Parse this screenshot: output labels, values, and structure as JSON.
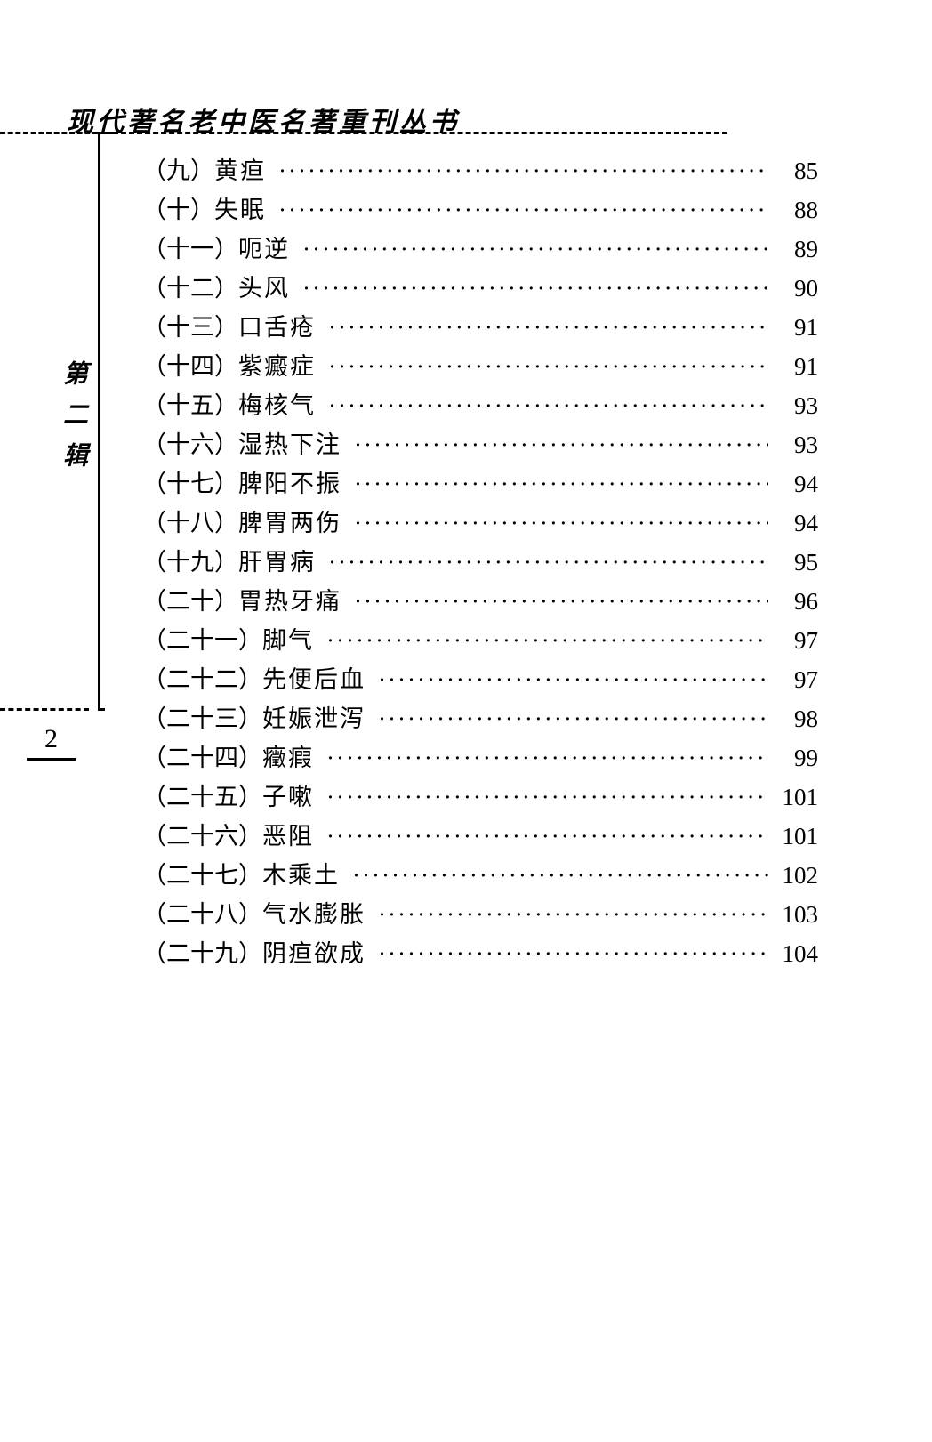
{
  "series_title": "现代著名老中医名著重刊丛书",
  "sidebar_label": "第二辑",
  "page_number": "2",
  "toc_entries": [
    {
      "index": "（九）",
      "title": "黄疸",
      "page": "85"
    },
    {
      "index": "（十）",
      "title": "失眠",
      "page": "88"
    },
    {
      "index": "（十一）",
      "title": "呃逆",
      "page": "89"
    },
    {
      "index": "（十二）",
      "title": "头风",
      "page": "90"
    },
    {
      "index": "（十三）",
      "title": "口舌疮",
      "page": "91"
    },
    {
      "index": "（十四）",
      "title": "紫癜症",
      "page": "91"
    },
    {
      "index": "（十五）",
      "title": "梅核气",
      "page": "93"
    },
    {
      "index": "（十六）",
      "title": "湿热下注",
      "page": "93"
    },
    {
      "index": "（十七）",
      "title": "脾阳不振",
      "page": "94"
    },
    {
      "index": "（十八）",
      "title": "脾胃两伤",
      "page": "94"
    },
    {
      "index": "（十九）",
      "title": "肝胃病",
      "page": "95"
    },
    {
      "index": "（二十）",
      "title": "胃热牙痛",
      "page": "96"
    },
    {
      "index": "（二十一）",
      "title": "脚气",
      "page": "97"
    },
    {
      "index": "（二十二）",
      "title": "先便后血",
      "page": "97"
    },
    {
      "index": "（二十三）",
      "title": "妊娠泄泻",
      "page": "98"
    },
    {
      "index": "（二十四）",
      "title": "癥瘕",
      "page": "99"
    },
    {
      "index": "（二十五）",
      "title": "子嗽",
      "page": "101"
    },
    {
      "index": "（二十六）",
      "title": "恶阻",
      "page": "101"
    },
    {
      "index": "（二十七）",
      "title": "木乘土",
      "page": "102"
    },
    {
      "index": "（二十八）",
      "title": "气水膨胀",
      "page": "103"
    },
    {
      "index": "（二十九）",
      "title": "阴疸欲成",
      "page": "104"
    }
  ],
  "colors": {
    "text": "#000000",
    "background": "#ffffff"
  },
  "typography": {
    "body_font": "SimSun",
    "title_font": "KaiTi",
    "toc_fontsize_pt": 20,
    "title_fontsize_pt": 22
  }
}
